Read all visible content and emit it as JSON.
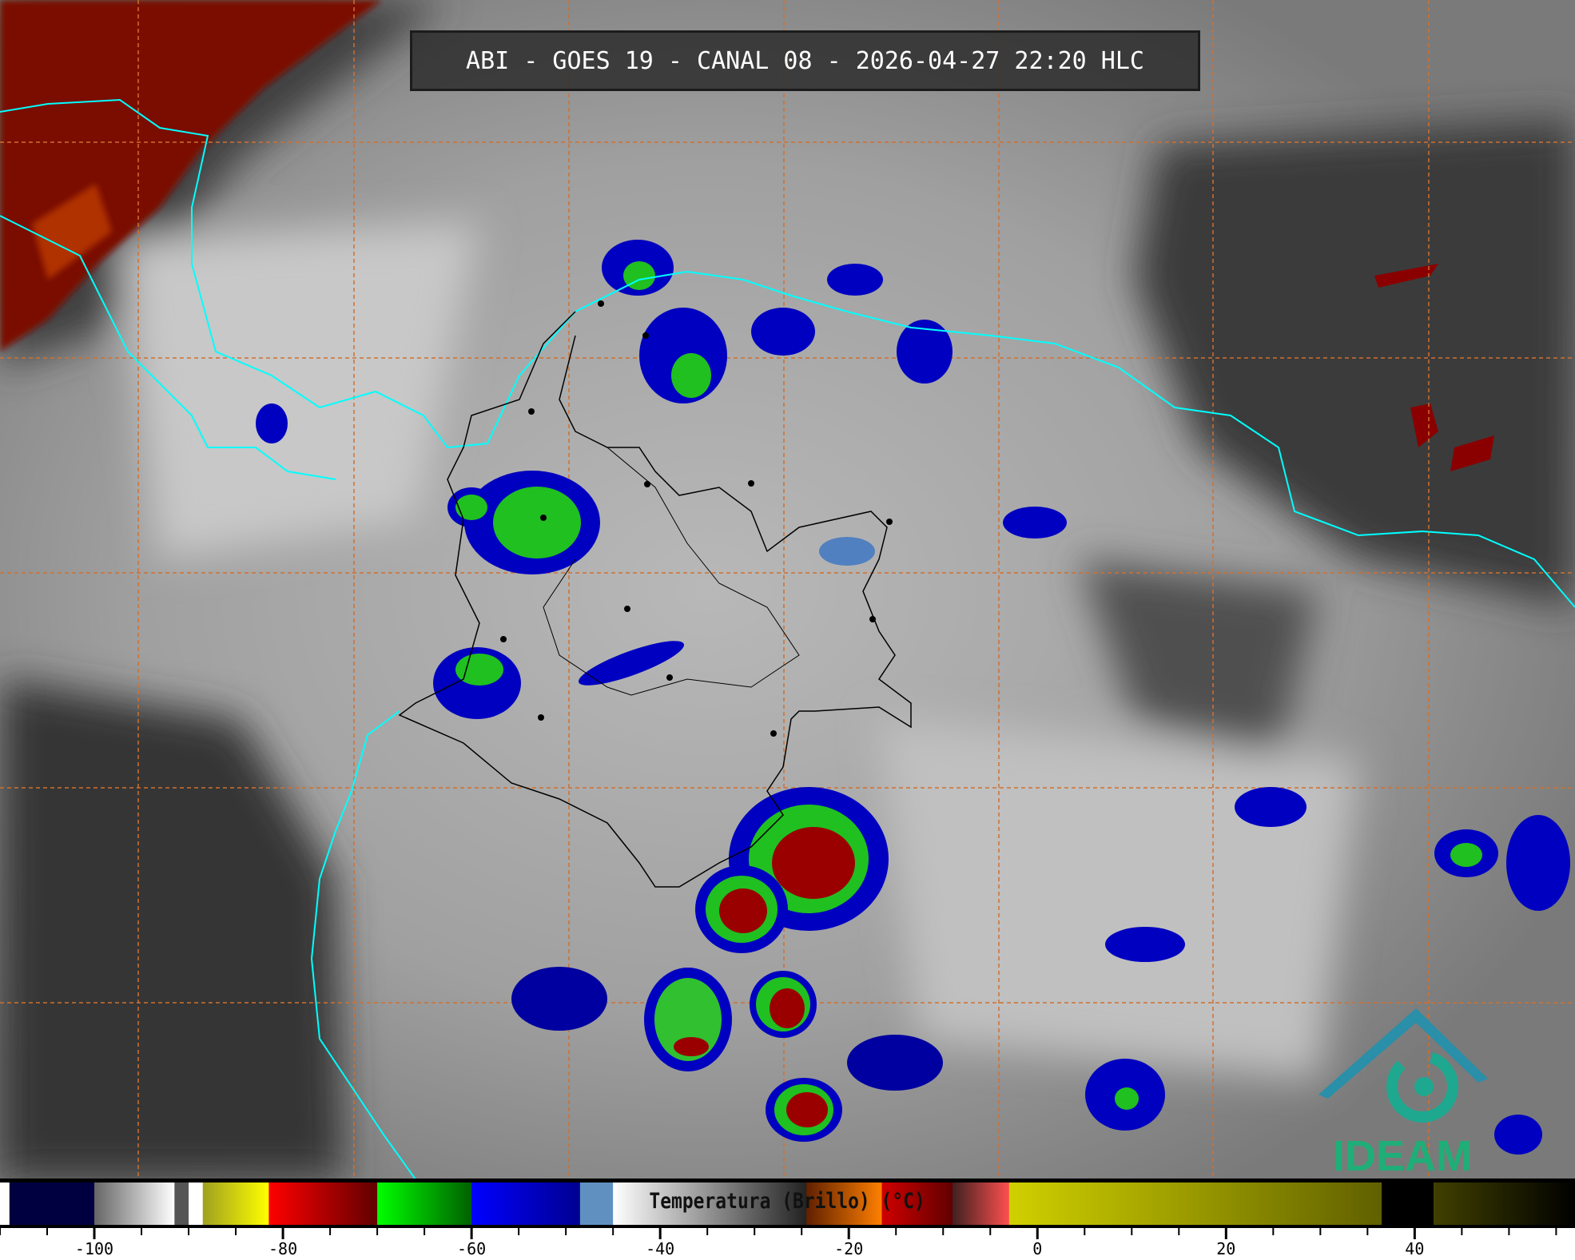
{
  "title": "ABI - GOES 19 - CANAL 08 - 2026-04-27 22:20 HLC",
  "logo": {
    "text": "IDEAM",
    "color": "#1fae78",
    "accent": "#2a8fa8"
  },
  "colorbar": {
    "label": "Temperatura (Brillo) (°C)",
    "range": [
      -110,
      57
    ],
    "tick_labels": [
      "-100",
      "-80",
      "-60",
      "-40",
      "-20",
      "0",
      "20",
      "40"
    ],
    "major_ticks": [
      -100,
      -80,
      -60,
      -40,
      -20,
      0,
      20,
      40
    ],
    "minor_step": 5,
    "segments": [
      {
        "from": -110,
        "to": -109,
        "colors": [
          "#ffffff",
          "#ffffff"
        ]
      },
      {
        "from": -109,
        "to": -100,
        "colors": [
          "#000040",
          "#000040"
        ]
      },
      {
        "from": -100,
        "to": -91.5,
        "colors": [
          "#666666",
          "#ffffff"
        ]
      },
      {
        "from": -91.5,
        "to": -90,
        "colors": [
          "#555555",
          "#555555"
        ]
      },
      {
        "from": -90,
        "to": -88.5,
        "colors": [
          "#ffffff",
          "#ffffff"
        ]
      },
      {
        "from": -88.5,
        "to": -81.5,
        "colors": [
          "#a0a020",
          "#ffff00"
        ]
      },
      {
        "from": -81.5,
        "to": -70,
        "colors": [
          "#ff0000",
          "#600000"
        ]
      },
      {
        "from": -70,
        "to": -60,
        "colors": [
          "#00ff00",
          "#006000"
        ]
      },
      {
        "from": -60,
        "to": -48.5,
        "colors": [
          "#0000ff",
          "#000090"
        ]
      },
      {
        "from": -48.5,
        "to": -45,
        "colors": [
          "#6090c0",
          "#6090c0"
        ]
      },
      {
        "from": -45,
        "to": -24.5,
        "colors": [
          "#ffffff",
          "#222222"
        ]
      },
      {
        "from": -24.5,
        "to": -16.5,
        "colors": [
          "#602000",
          "#ff8000"
        ]
      },
      {
        "from": -16.5,
        "to": -9,
        "colors": [
          "#d00000",
          "#600000"
        ]
      },
      {
        "from": -9,
        "to": -3,
        "colors": [
          "#402020",
          "#ff5050"
        ]
      },
      {
        "from": -3,
        "to": 36.5,
        "colors": [
          "#d0d000",
          "#606000"
        ]
      },
      {
        "from": 36.5,
        "to": 42,
        "colors": [
          "#000000",
          "#000000"
        ]
      },
      {
        "from": 42,
        "to": 57,
        "colors": [
          "#404000",
          "#000000"
        ]
      }
    ]
  },
  "colors": {
    "coastline": "#00ffff",
    "borders": "#000000",
    "grid": "#d07030"
  }
}
